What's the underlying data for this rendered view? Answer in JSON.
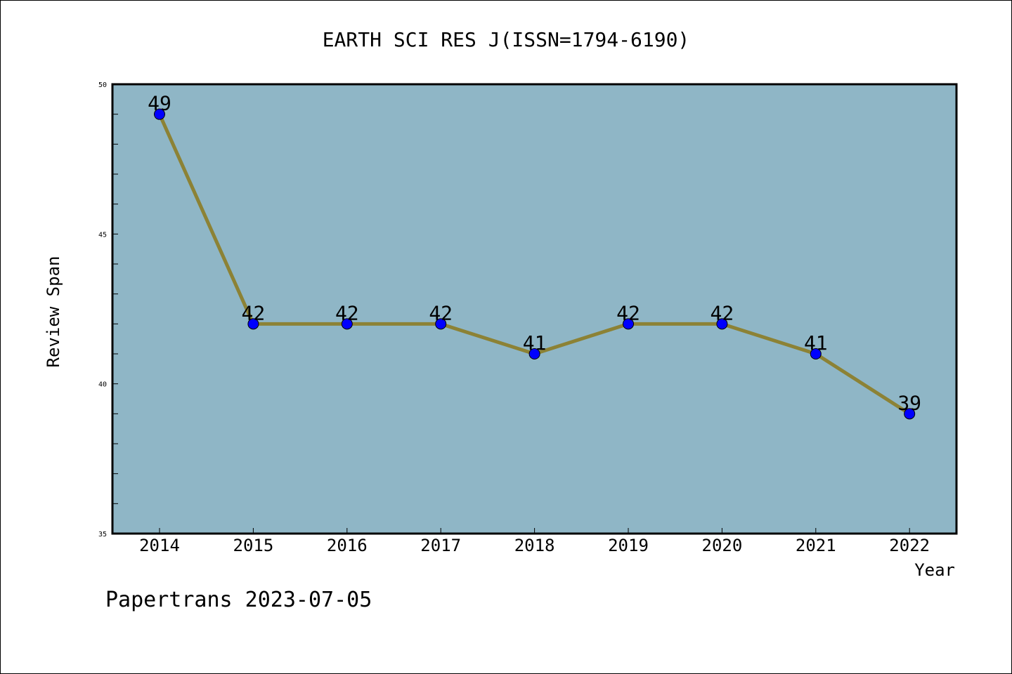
{
  "chart_data": {
    "type": "line",
    "title": "EARTH SCI RES J(ISSN=1794-6190)",
    "xlabel": "Year",
    "ylabel": "Review Span",
    "categories": [
      "2014",
      "2015",
      "2016",
      "2017",
      "2018",
      "2019",
      "2020",
      "2021",
      "2022"
    ],
    "series": [
      {
        "values": [
          49,
          42,
          42,
          42,
          41,
          42,
          42,
          41,
          39
        ]
      }
    ],
    "ylim": [
      35,
      50
    ],
    "yticks": [
      35,
      40,
      45,
      50
    ],
    "ytick_labels": [
      "35",
      "40",
      "45",
      "50"
    ],
    "grid": false,
    "data_labels": true,
    "colors": {
      "plot_background": "#8fb6c6",
      "line": "#8c8235",
      "marker": "#0000ff"
    }
  },
  "footer": {
    "watermark": "Papertrans 2023-07-05"
  }
}
